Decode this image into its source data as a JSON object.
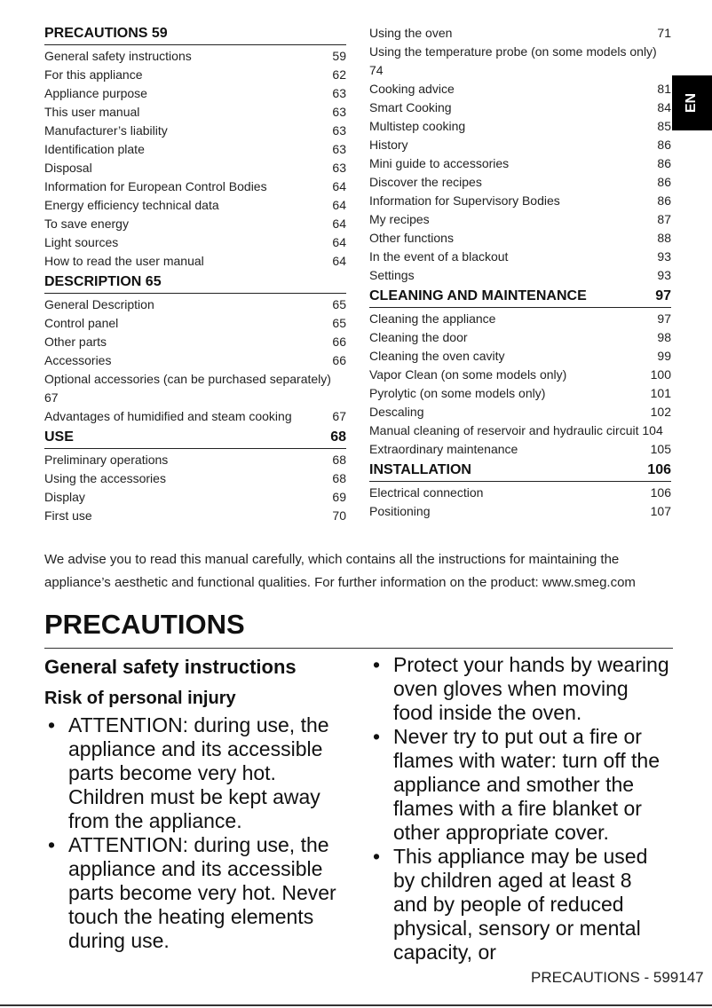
{
  "toc_left": [
    {
      "title": "PRECAUTIONS 59",
      "page": "",
      "items": [
        [
          "General safety instructions",
          "59"
        ],
        [
          "For this appliance",
          "62"
        ],
        [
          "Appliance purpose",
          "63"
        ],
        [
          "This user manual",
          "63"
        ],
        [
          "Manufacturer’s liability",
          "63"
        ],
        [
          "Identification plate",
          "63"
        ],
        [
          "Disposal",
          "63"
        ],
        [
          "Information for European Control Bodies",
          "64"
        ],
        [
          "Energy efficiency technical data",
          "64"
        ],
        [
          "To save energy",
          "64"
        ],
        [
          "Light sources",
          "64"
        ],
        [
          "How to read the user manual",
          "64"
        ]
      ]
    },
    {
      "title": "DESCRIPTION 65",
      "page": "",
      "items": [
        [
          "General Description",
          "65"
        ],
        [
          "Control panel",
          "65"
        ],
        [
          "Other parts",
          "66"
        ],
        [
          "Accessories",
          "66"
        ],
        [
          "Optional accessories (can be purchased separately) 67",
          ""
        ],
        [
          "Advantages of humidified and steam cooking",
          "67"
        ]
      ]
    },
    {
      "title": "USE",
      "page": "68",
      "items": [
        [
          "Preliminary operations",
          "68"
        ],
        [
          "Using the accessories",
          "68"
        ],
        [
          "Display",
          "69"
        ],
        [
          "First use",
          "70"
        ]
      ]
    }
  ],
  "toc_right": [
    {
      "title": "",
      "page": "",
      "items": [
        [
          "Using the oven",
          "71"
        ],
        [
          "Using the temperature probe (on some models only) 74",
          ""
        ],
        [
          "Cooking advice",
          "81"
        ],
        [
          "Smart Cooking",
          "84"
        ],
        [
          "Multistep cooking",
          "85"
        ],
        [
          "History",
          "86"
        ],
        [
          "Mini guide to accessories",
          "86"
        ],
        [
          "Discover the recipes",
          "86"
        ],
        [
          "Information for Supervisory Bodies",
          "86"
        ],
        [
          "My recipes",
          "87"
        ],
        [
          "Other functions",
          "88"
        ],
        [
          "In the event of a blackout",
          "93"
        ],
        [
          "Settings",
          "93"
        ]
      ]
    },
    {
      "title": "CLEANING AND MAINTENANCE",
      "page": "97",
      "items": [
        [
          "Cleaning the appliance",
          "97"
        ],
        [
          "Cleaning the door",
          "98"
        ],
        [
          "Cleaning the oven cavity",
          "99"
        ],
        [
          "Vapor Clean (on some models only)",
          "100"
        ],
        [
          "Pyrolytic (on some models only)",
          "101"
        ],
        [
          "Descaling",
          "102"
        ],
        [
          "Manual cleaning of reservoir and hydraulic circuit 104",
          ""
        ],
        [
          "Extraordinary maintenance",
          "105"
        ]
      ]
    },
    {
      "title": "INSTALLATION",
      "page": "106",
      "items": [
        [
          "Electrical connection",
          "106"
        ],
        [
          "Positioning",
          "107"
        ]
      ]
    }
  ],
  "lang_tab": "EN",
  "intro": "We advise you to read this manual carefully, which contains all the instructions for maintaining the appliance’s aesthetic and functional qualities. For further information on the product: www.smeg.com",
  "heading": "PRECAUTIONS",
  "subheading": "General safety instructions",
  "subsubheading": "Risk of personal injury",
  "bullets_left": [
    "ATTENTION: during use, the appliance and its accessible parts become very hot. Children must be kept away from the appliance.",
    "ATTENTION: during use, the appliance and its accessible parts become very hot. Never touch the heating elements during use."
  ],
  "bullets_right": [
    "Protect your hands by wearing oven gloves when moving food inside the oven.",
    "Never try to put out a fire or flames with water: turn off the appliance and smother the flames with a fire blanket or other appropriate cover.",
    "This appliance may be used by children aged at least 8 and by people of reduced physical, sensory or mental capacity, or"
  ],
  "footer": "PRECAUTIONS - 599147"
}
